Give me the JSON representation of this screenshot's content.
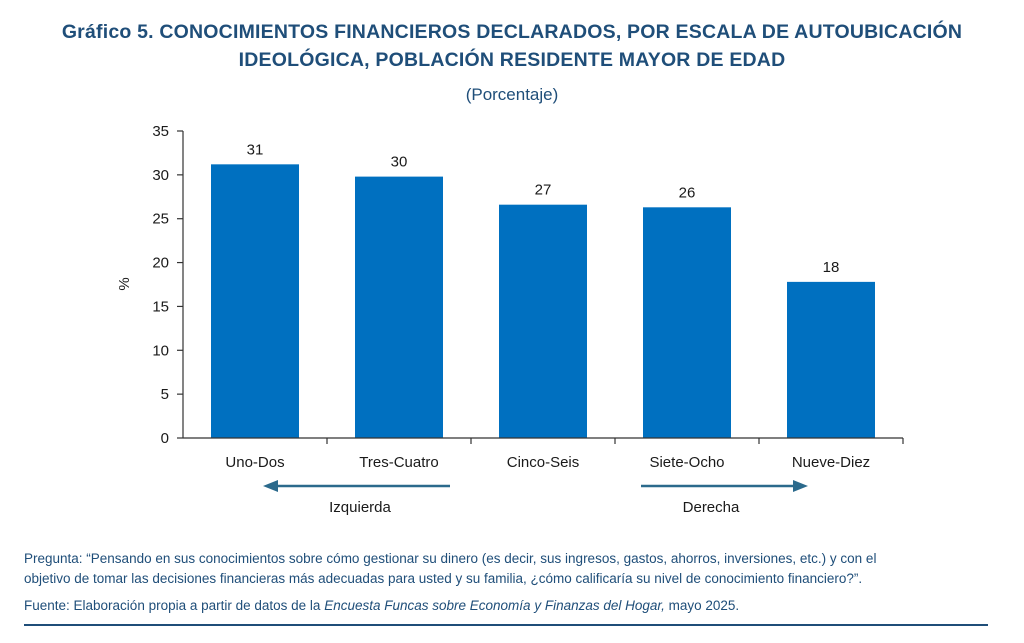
{
  "title_line1": "Gráfico 5. CONOCIMIENTOS FINANCIEROS DECLARADOS, POR ESCALA DE AUTOUBICACIÓN",
  "title_line2": "IDEOLÓGICA, POBLACIÓN RESIDENTE MAYOR DE EDAD",
  "subtitle": "(Porcentaje)",
  "direction_labels": {
    "left": "Izquierda",
    "right": "Derecha"
  },
  "footer": {
    "question_line1": "Pregunta: “Pensando en sus conocimientos sobre cómo gestionar su dinero (es decir, sus ingresos, gastos, ahorros, inversiones, etc.) y con el",
    "question_line2": "objetivo de tomar las decisiones financieras más adecuadas para usted y su familia, ¿cómo calificaría su nivel de conocimiento financiero?”.",
    "source_prefix": "Fuente: Elaboración propia a partir de datos de la ",
    "source_italic": "Encuesta Funcas sobre Economía y Finanzas del Hogar,",
    "source_suffix": " mayo 2025."
  },
  "colors": {
    "bar": "#0070c0",
    "text_blue": "#1f4e79",
    "arrow": "#2b6a8c"
  },
  "chart_data": {
    "type": "bar",
    "categories": [
      "Uno-Dos",
      "Tres-Cuatro",
      "Cinco-Seis",
      "Siete-Ocho",
      "Nueve-Diez"
    ],
    "values": [
      31.2,
      29.8,
      26.6,
      26.3,
      17.8
    ],
    "data_labels": [
      "31",
      "30",
      "27",
      "26",
      "18"
    ],
    "ylabel": "%",
    "xlabel": "",
    "ylim": [
      0,
      35
    ],
    "yticks": [
      0,
      5,
      10,
      15,
      20,
      25,
      30,
      35
    ],
    "grid": false,
    "legend": "none"
  }
}
